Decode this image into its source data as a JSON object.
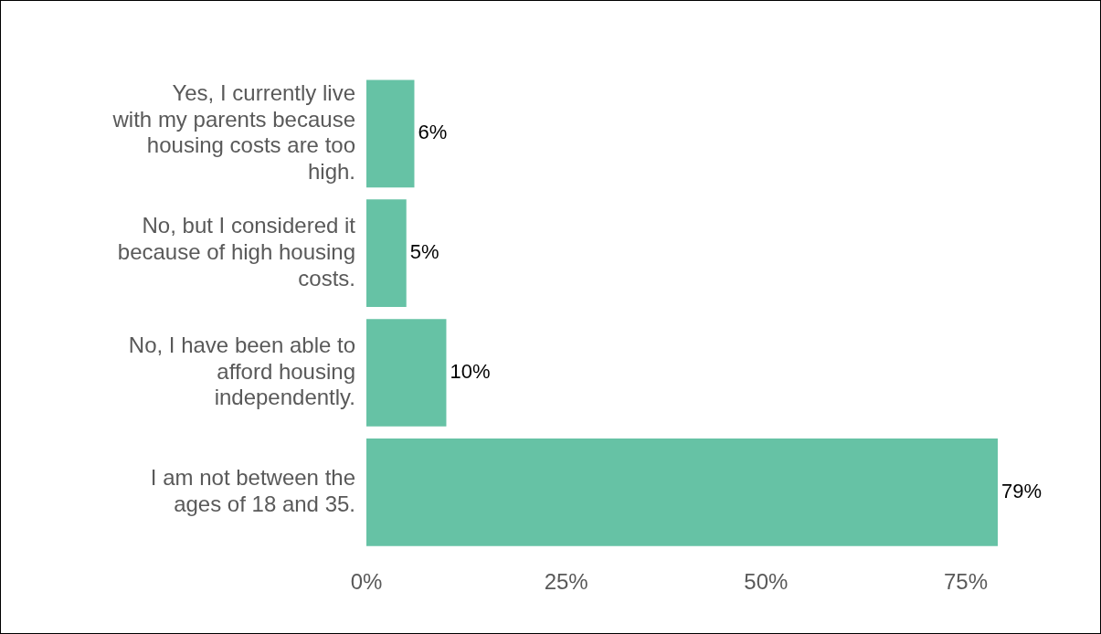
{
  "chart_data": {
    "type": "bar",
    "orientation": "horizontal",
    "categories": [
      "Yes, I currently live with my parents because housing costs are too high.",
      "No, but I considered it because of high housing costs.",
      "No, I have been able to afford housing independently.",
      "I am not between the ages of 18 and 35."
    ],
    "values": [
      6,
      5,
      10,
      79
    ],
    "value_labels": [
      "6%",
      "5%",
      "10%",
      "79%"
    ],
    "color": "#66c2a5",
    "xlim": [
      0,
      79
    ],
    "xticks": [
      {
        "value": 0,
        "label": "0%"
      },
      {
        "value": 25,
        "label": "25%"
      },
      {
        "value": 50,
        "label": "50%"
      },
      {
        "value": 75,
        "label": "75%"
      }
    ],
    "grid": false,
    "legend": false
  }
}
